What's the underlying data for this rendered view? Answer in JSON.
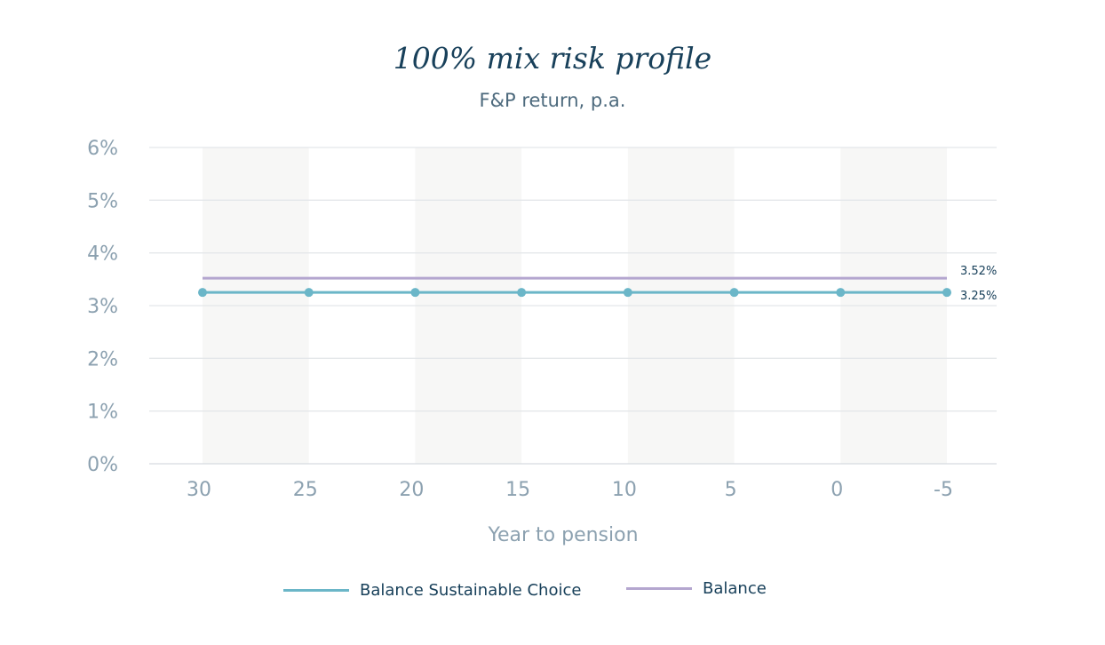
{
  "colors": {
    "series_sustainable": "#6bb6c8",
    "series_balance": "#b4a6cf",
    "grid": "#e4e7ea",
    "band": "#f7f7f6",
    "title": "#18405a",
    "tick": "#8ca1b0"
  },
  "chart_data": {
    "type": "line",
    "title": "100% mix risk profile",
    "subtitle": "F&P return, p.a.",
    "xlabel": "Year to pension",
    "ylabel": "",
    "x": [
      30,
      25,
      20,
      15,
      10,
      5,
      0,
      -5
    ],
    "x_tick_labels": [
      "30",
      "25",
      "20",
      "15",
      "10",
      "5",
      "0",
      "-5"
    ],
    "y_tick_labels": [
      "0%",
      "1%",
      "2%",
      "3%",
      "4%",
      "5%",
      "6%"
    ],
    "ylim": [
      0,
      6
    ],
    "grid": true,
    "legend_position": "bottom",
    "series": [
      {
        "name": "Balance Sustainable Choice",
        "values": [
          3.25,
          3.25,
          3.25,
          3.25,
          3.25,
          3.25,
          3.25,
          3.25
        ],
        "markers": true,
        "end_label": "3.25%"
      },
      {
        "name": "Balance",
        "values": [
          3.52,
          3.52,
          3.52,
          3.52,
          3.52,
          3.52,
          3.52,
          3.52
        ],
        "markers": false,
        "end_label": "3.52%"
      }
    ]
  }
}
